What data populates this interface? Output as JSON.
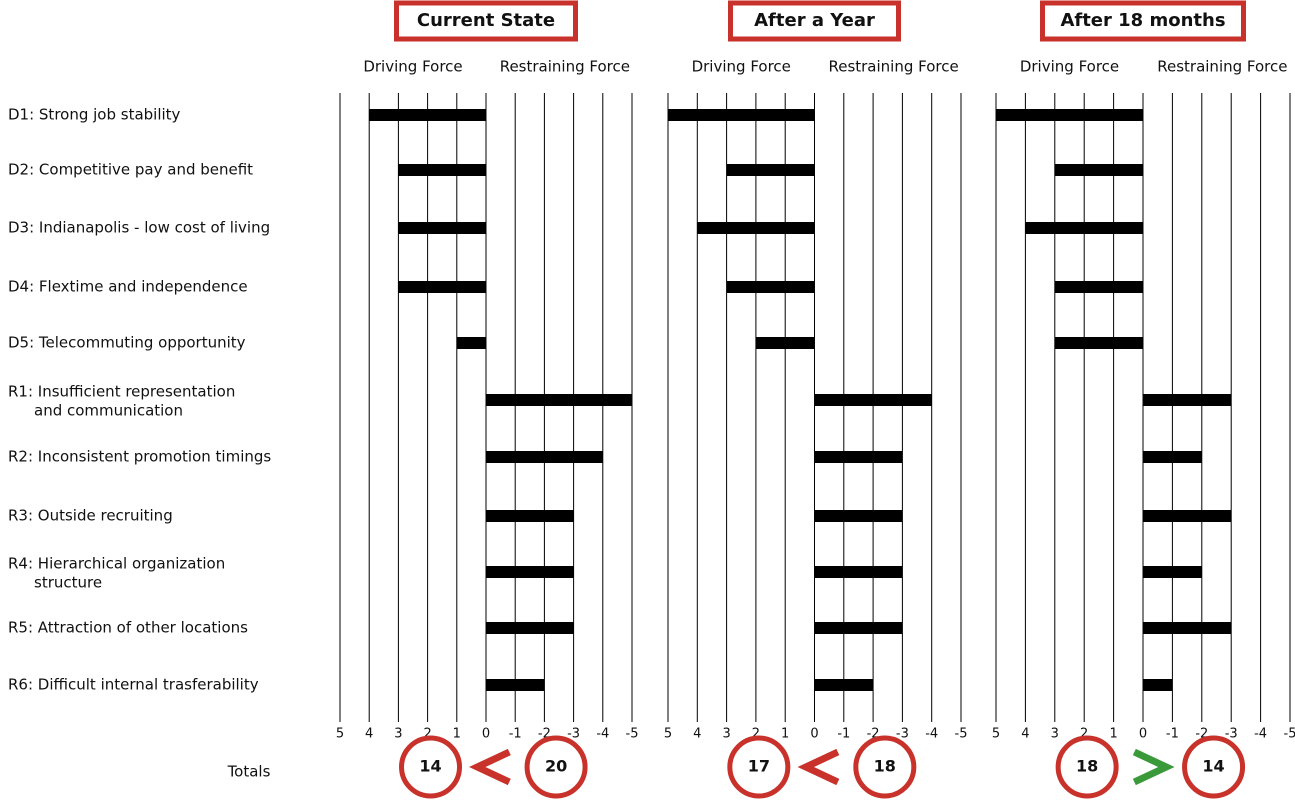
{
  "categories": [
    [
      "D1: Strong job stability"
    ],
    [
      "D2: Competitive pay and benefit"
    ],
    [
      "D3: Indianapolis - low cost of living"
    ],
    [
      "D4: Flextime and independence"
    ],
    [
      "D5: Telecommuting opportunity"
    ],
    [
      "R1: Insufficient representation",
      "and communication"
    ],
    [
      "R2: Inconsistent promotion timings"
    ],
    [
      "R3: Outside recruiting"
    ],
    [
      "R4: Hierarchical organization",
      "structure"
    ],
    [
      "R5: Attraction of other locations"
    ],
    [
      "R6: Difficult internal trasferability"
    ]
  ],
  "totals_label": "Totals",
  "chart_data": [
    {
      "type": "bar",
      "title": "Current State",
      "driving_label": "Driving Force",
      "restraining_label": "Restraining Force",
      "values": [
        4,
        3,
        3,
        3,
        1,
        -5,
        -4,
        -3,
        -3,
        -3,
        -2
      ],
      "color": "#000000",
      "xlim": [
        5,
        -5
      ],
      "xticks": [
        5,
        4,
        3,
        2,
        1,
        0,
        -1,
        -2,
        -3,
        -4,
        -5
      ],
      "totals": [
        14,
        20
      ],
      "comparison_color": "#c8322b"
    },
    {
      "type": "bar",
      "title": "After a Year",
      "driving_label": "Driving Force",
      "restraining_label": "Restraining Force",
      "values": [
        5,
        3,
        4,
        3,
        2,
        -4,
        -3,
        -3,
        -3,
        -3,
        -2
      ],
      "color": "#000000",
      "xlim": [
        5,
        -5
      ],
      "xticks": [
        5,
        4,
        3,
        2,
        1,
        0,
        -1,
        -2,
        -3,
        -4,
        -5
      ],
      "totals": [
        17,
        18
      ],
      "comparison_color": "#c8322b"
    },
    {
      "type": "bar",
      "title": "After 18 months",
      "driving_label": "Driving Force",
      "restraining_label": "Restraining Force",
      "values": [
        5,
        3,
        4,
        3,
        3,
        -3,
        -2,
        -3,
        -2,
        -3,
        -1
      ],
      "color": "#000000",
      "xlim": [
        5,
        -5
      ],
      "xticks": [
        5,
        4,
        3,
        2,
        1,
        0,
        -1,
        -2,
        -3,
        -4,
        -5
      ],
      "totals": [
        18,
        14
      ],
      "comparison_color": "#3a9a3a"
    }
  ]
}
